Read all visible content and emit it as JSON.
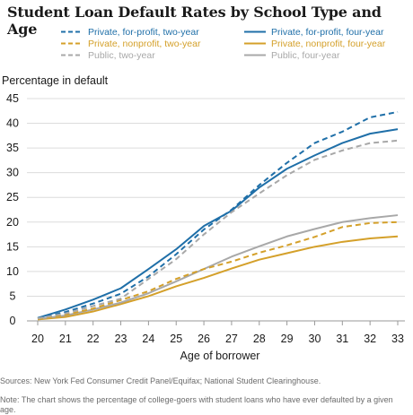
{
  "title": "Student Loan Default Rates by School Type and Age",
  "sources": "Sources: New York Fed Consumer Credit Panel/Equifax; National Student Clearinghouse.",
  "note": "Note: The chart shows the percentage of college-goers with student loans who have ever defaulted by a given age.",
  "chart_data": {
    "type": "line",
    "title": "Student Loan Default Rates by School Type and Age",
    "ylabel": "Percentage in default",
    "xlabel": "Age of borrower",
    "x": [
      20,
      21,
      22,
      23,
      24,
      25,
      26,
      27,
      28,
      29,
      30,
      31,
      32,
      33
    ],
    "xlim": [
      20,
      33
    ],
    "ylim": [
      0,
      45
    ],
    "yticks": [
      0,
      5,
      10,
      15,
      20,
      25,
      30,
      35,
      40,
      45
    ],
    "grid": true,
    "legend_position": "top",
    "series": [
      {
        "name": "Private, for-profit, two-year",
        "color": "#1f6fa8",
        "dash": "dashed",
        "values": [
          0.5,
          1.8,
          3.5,
          5.5,
          9.0,
          13.5,
          18.5,
          22.5,
          27.5,
          32.0,
          36.0,
          38.3,
          41.2,
          42.3
        ]
      },
      {
        "name": "Private, for-profit, four-year",
        "color": "#1f6fa8",
        "dash": "solid",
        "values": [
          0.6,
          2.3,
          4.3,
          6.6,
          10.5,
          14.5,
          19.2,
          22.3,
          27.0,
          30.8,
          33.5,
          36.0,
          37.9,
          38.8
        ]
      },
      {
        "name": "Private, nonprofit, two-year",
        "color": "#d4a02a",
        "dash": "dashed",
        "values": [
          0.4,
          1.2,
          2.5,
          4.2,
          6.0,
          8.5,
          10.5,
          12.0,
          13.8,
          15.3,
          17.0,
          19.0,
          19.8,
          20.0
        ]
      },
      {
        "name": "Private, nonprofit, four-year",
        "color": "#d4a02a",
        "dash": "solid",
        "values": [
          0.3,
          0.8,
          1.9,
          3.4,
          5.0,
          7.0,
          8.7,
          10.6,
          12.4,
          13.7,
          15.0,
          16.0,
          16.7,
          17.1
        ]
      },
      {
        "name": "Public, two-year",
        "color": "#a8a8a8",
        "dash": "dashed",
        "values": [
          0.5,
          1.5,
          3.0,
          4.5,
          8.5,
          12.5,
          17.5,
          22.0,
          25.8,
          29.5,
          32.6,
          34.5,
          36.0,
          36.5
        ]
      },
      {
        "name": "Public, four-year",
        "color": "#a8a8a8",
        "dash": "solid",
        "values": [
          0.4,
          1.1,
          2.3,
          3.7,
          5.6,
          8.0,
          10.5,
          13.0,
          15.1,
          17.1,
          18.6,
          20.0,
          20.8,
          21.4
        ]
      }
    ]
  }
}
